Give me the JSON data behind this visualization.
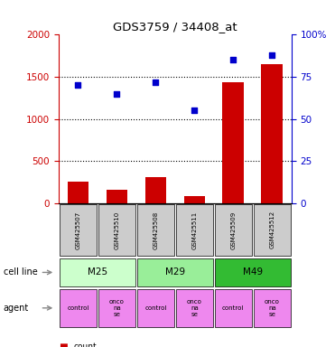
{
  "title": "GDS3759 / 34408_at",
  "samples": [
    "GSM425507",
    "GSM425510",
    "GSM425508",
    "GSM425511",
    "GSM425509",
    "GSM425512"
  ],
  "bar_values": [
    250,
    160,
    310,
    80,
    1430,
    1650
  ],
  "dot_values": [
    70,
    65,
    72,
    55,
    85,
    88
  ],
  "bar_color": "#cc0000",
  "dot_color": "#0000cc",
  "left_ylim": [
    0,
    2000
  ],
  "left_yticks": [
    0,
    500,
    1000,
    1500,
    2000
  ],
  "right_ylim": [
    0,
    100
  ],
  "right_yticks": [
    0,
    25,
    50,
    75,
    100
  ],
  "right_yticklabels": [
    "0",
    "25",
    "50",
    "75",
    "100%"
  ],
  "left_tick_color": "#cc0000",
  "right_tick_color": "#0000cc",
  "cell_line_labels": [
    "M25",
    "M29",
    "M49"
  ],
  "cell_line_spans": [
    [
      0,
      2
    ],
    [
      2,
      4
    ],
    [
      4,
      6
    ]
  ],
  "cell_line_colors": [
    "#ccffcc",
    "#99ee99",
    "#33bb33"
  ],
  "agent_labels": [
    "control",
    "onco\nna\nse",
    "control",
    "onco\nna\nse",
    "control",
    "onco\nna\nse"
  ],
  "agent_color": "#ee88ee",
  "sample_bg_color": "#cccccc",
  "legend_count_color": "#cc0000",
  "legend_dot_color": "#0000cc",
  "grid_yticks": [
    500,
    1000,
    1500
  ]
}
